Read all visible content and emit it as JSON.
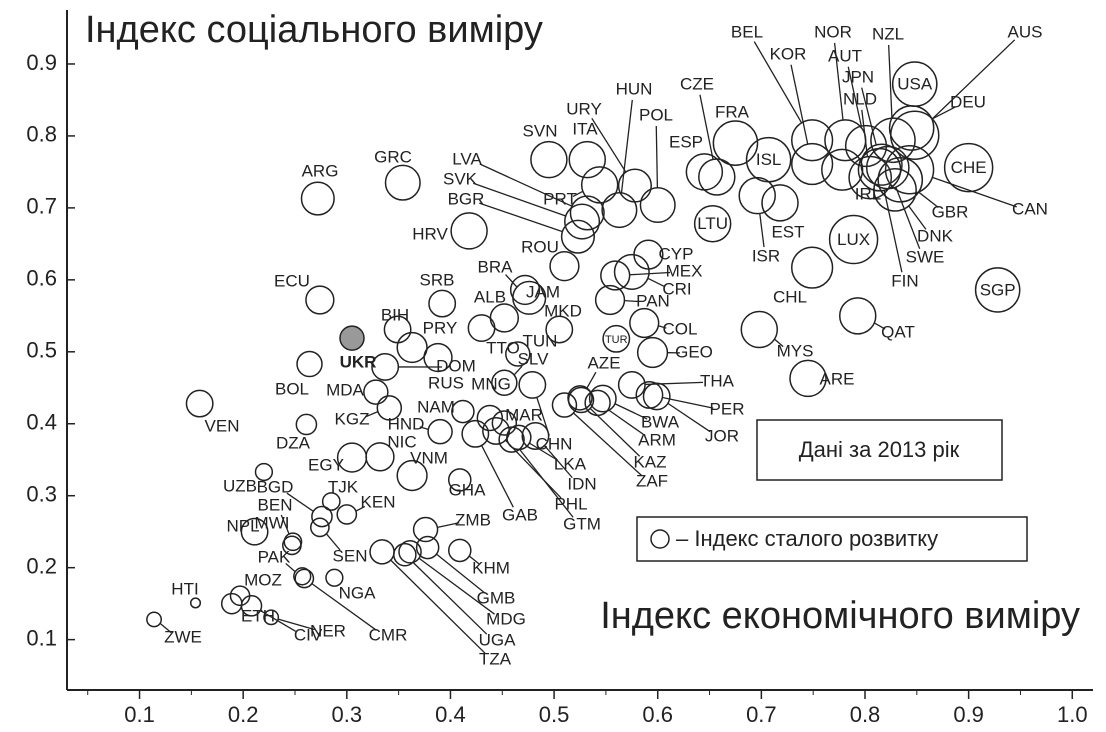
{
  "chart_data": {
    "type": "bubble",
    "ylabel": "Індекс соціального виміру",
    "xlabel": "Індекс економічного виміру",
    "annotation": "Дані за 2013 рік",
    "xlim": [
      0.03,
      1.02
    ],
    "ylim": [
      0.03,
      0.975
    ],
    "xticks": [
      0.1,
      0.2,
      0.3,
      0.4,
      0.5,
      0.6,
      0.7,
      0.8,
      0.9,
      {
        "value": 1,
        "label": "1.0"
      }
    ],
    "xminorticks": [
      0.05,
      0.15,
      0.25,
      0.35,
      0.45,
      0.55,
      0.65,
      0.75,
      0.85,
      0.95
    ],
    "yticks": [
      0.1,
      0.2,
      0.3,
      0.4,
      0.5,
      0.6,
      0.7,
      0.8,
      0.9
    ],
    "series": [
      {
        "name": "– Індекс сталого розвитку",
        "color": "#222222",
        "labels": [
          "ZWE",
          "HTI",
          "ETH",
          "MOZ",
          "CIV",
          "NER",
          "PAK",
          "CMR",
          "NGA",
          "NPL",
          "MWI",
          "BEN",
          "BGD",
          "SEN",
          "TJK",
          "KEN",
          "UZB",
          "EGY",
          "DZA",
          "VEN",
          "BOL",
          "ECU",
          "ARG",
          "GRC",
          "UKR",
          "MDA",
          "BIH",
          "SRB",
          "PRY",
          "RUS",
          "DOM",
          "KGZ",
          "HND",
          "NIC",
          "VNM",
          "GHA",
          "GAB",
          "PHL",
          "GTM",
          "IDN",
          "NAM",
          "MNG",
          "MAR",
          "LKA",
          "CHN",
          "SLV",
          "TUN",
          "TTO",
          "ALB",
          "JAM",
          "BRA",
          "ROU",
          "MKD",
          "AZE",
          "TUR",
          "COL",
          "GEO",
          "THA",
          "PER",
          "JOR",
          "BWA",
          "ARM",
          "KAZ",
          "ZAF",
          "PAN",
          "CRI",
          "MEX",
          "CYP",
          "HRV",
          "BGR",
          "SVK",
          "LVA",
          "PRT",
          "SVN",
          "ITA",
          "URY",
          "HUN",
          "POL",
          "CZE",
          "ESP",
          "FRA",
          "LTU",
          "ISL",
          "ISR",
          "EST",
          "BEL",
          "KOR",
          "NOR",
          "AUT",
          "JPN",
          "NLD",
          "NZL",
          "USA",
          "AUS",
          "DEU",
          "CHE",
          "CAN",
          "GBR",
          "DNK",
          "SWE",
          "FIN",
          "IRL",
          "LUX",
          "SGP",
          "CHL",
          "QAT",
          "MYS",
          "ARE",
          "KHM",
          "ZMB",
          "GMB",
          "MDG",
          "UGA",
          "TZA"
        ],
        "x": [
          0.114,
          0.154,
          0.189,
          0.197,
          0.208,
          0.227,
          0.257,
          0.259,
          0.288,
          0.211,
          0.247,
          0.248,
          0.276,
          0.274,
          0.285,
          0.3,
          0.22,
          0.305,
          0.261,
          0.158,
          0.264,
          0.274,
          0.272,
          0.354,
          0.305,
          0.328,
          0.349,
          0.392,
          0.363,
          0.388,
          0.337,
          0.341,
          0.39,
          0.332,
          0.363,
          0.409,
          0.424,
          0.444,
          0.459,
          0.482,
          0.412,
          0.438,
          0.452,
          0.466,
          0.479,
          0.452,
          0.465,
          0.43,
          0.452,
          0.472,
          0.476,
          0.51,
          0.505,
          0.525,
          0.56,
          0.587,
          0.595,
          0.575,
          0.592,
          0.599,
          0.547,
          0.542,
          0.526,
          0.51,
          0.554,
          0.575,
          0.559,
          0.591,
          0.418,
          0.523,
          0.527,
          0.532,
          0.544,
          0.495,
          0.532,
          0.578,
          0.563,
          0.6,
          0.657,
          0.645,
          0.675,
          0.653,
          0.707,
          0.696,
          0.718,
          0.749,
          0.749,
          0.781,
          0.801,
          0.816,
          0.805,
          0.827,
          0.848,
          0.848,
          0.845,
          0.9,
          0.843,
          0.834,
          0.829,
          0.822,
          0.814,
          0.778,
          0.789,
          0.928,
          0.749,
          0.793,
          0.698,
          0.745,
          0.409,
          0.376,
          0.378,
          0.361,
          0.356,
          0.334
        ],
        "y": [
          0.128,
          0.151,
          0.15,
          0.161,
          0.147,
          0.131,
          0.188,
          0.185,
          0.186,
          0.25,
          0.231,
          0.236,
          0.271,
          0.256,
          0.292,
          0.274,
          0.333,
          0.353,
          0.399,
          0.428,
          0.483,
          0.572,
          0.713,
          0.735,
          0.519,
          0.444,
          0.531,
          0.567,
          0.506,
          0.492,
          0.479,
          0.422,
          0.389,
          0.354,
          0.328,
          0.322,
          0.386,
          0.39,
          0.378,
          0.383,
          0.417,
          0.408,
          0.401,
          0.381,
          0.454,
          0.457,
          0.497,
          0.533,
          0.547,
          0.586,
          0.575,
          0.619,
          0.531,
          0.436,
          0.518,
          0.54,
          0.499,
          0.454,
          0.44,
          0.438,
          0.435,
          0.429,
          0.433,
          0.426,
          0.572,
          0.611,
          0.606,
          0.635,
          0.668,
          0.66,
          0.681,
          0.693,
          0.732,
          0.767,
          0.767,
          0.731,
          0.697,
          0.704,
          0.743,
          0.75,
          0.79,
          0.678,
          0.767,
          0.717,
          0.707,
          0.794,
          0.761,
          0.794,
          0.786,
          0.76,
          0.742,
          0.794,
          0.872,
          0.801,
          0.811,
          0.756,
          0.753,
          0.739,
          0.725,
          0.756,
          0.753,
          0.753,
          0.656,
          0.586,
          0.617,
          0.55,
          0.531,
          0.463,
          0.224,
          0.253,
          0.228,
          0.222,
          0.218,
          0.222
        ],
        "sizes": [
          0.3,
          0.2,
          0.42,
          0.4,
          0.42,
          0.3,
          0.35,
          0.38,
          0.35,
          0.55,
          0.38,
          0.36,
          0.42,
          0.38,
          0.36,
          0.4,
          0.35,
          0.6,
          0.42,
          0.55,
          0.52,
          0.58,
          0.68,
          0.72,
          0.5,
          0.5,
          0.55,
          0.55,
          0.62,
          0.58,
          0.55,
          0.5,
          0.5,
          0.58,
          0.62,
          0.46,
          0.55,
          0.55,
          0.52,
          0.55,
          0.46,
          0.52,
          0.5,
          0.5,
          0.55,
          0.52,
          0.5,
          0.55,
          0.58,
          0.6,
          0.68,
          0.6,
          0.55,
          0.5,
          0.55,
          0.6,
          0.62,
          0.55,
          0.55,
          0.55,
          0.55,
          0.52,
          0.52,
          0.5,
          0.6,
          0.72,
          0.6,
          0.6,
          0.75,
          0.68,
          0.72,
          0.7,
          0.75,
          0.75,
          0.75,
          0.68,
          0.72,
          0.72,
          0.75,
          0.75,
          0.92,
          0.75,
          0.92,
          0.75,
          0.75,
          0.85,
          0.85,
          0.85,
          0.85,
          0.85,
          0.88,
          0.92,
          0.92,
          1.0,
          0.92,
          1.0,
          1.0,
          0.92,
          0.88,
          0.88,
          0.88,
          0.85,
          1.0,
          0.92,
          0.85,
          0.75,
          0.75,
          0.75,
          0.46,
          0.5,
          0.46,
          0.46,
          0.46,
          0.5
        ],
        "fills": [
          "none",
          "none",
          "none",
          "none",
          "none",
          "none",
          "none",
          "none",
          "none",
          "none",
          "none",
          "none",
          "none",
          "none",
          "none",
          "none",
          "none",
          "none",
          "none",
          "none",
          "none",
          "none",
          "none",
          "none",
          "#999999",
          "none",
          "none",
          "none",
          "none",
          "none",
          "none",
          "none",
          "none",
          "none",
          "none",
          "none",
          "none",
          "none",
          "none",
          "none",
          "none",
          "none",
          "none",
          "none",
          "none",
          "none",
          "none",
          "none",
          "none",
          "none",
          "none",
          "none",
          "none",
          "none",
          "none",
          "none",
          "none",
          "none",
          "none",
          "none",
          "none",
          "none",
          "none",
          "none",
          "none",
          "none",
          "none",
          "none",
          "none",
          "none",
          "none",
          "none",
          "none",
          "none",
          "none",
          "none",
          "none",
          "none",
          "none",
          "none",
          "none",
          "none",
          "none",
          "none",
          "none",
          "none",
          "none",
          "none",
          "none",
          "none",
          "none",
          "none",
          "none",
          "none",
          "none",
          "none",
          "none",
          "none",
          "none",
          "none",
          "none",
          "none",
          "none",
          "none",
          "none",
          "none",
          "none",
          "none",
          "none",
          "none",
          "none",
          "none",
          "none",
          "none"
        ]
      }
    ]
  }
}
